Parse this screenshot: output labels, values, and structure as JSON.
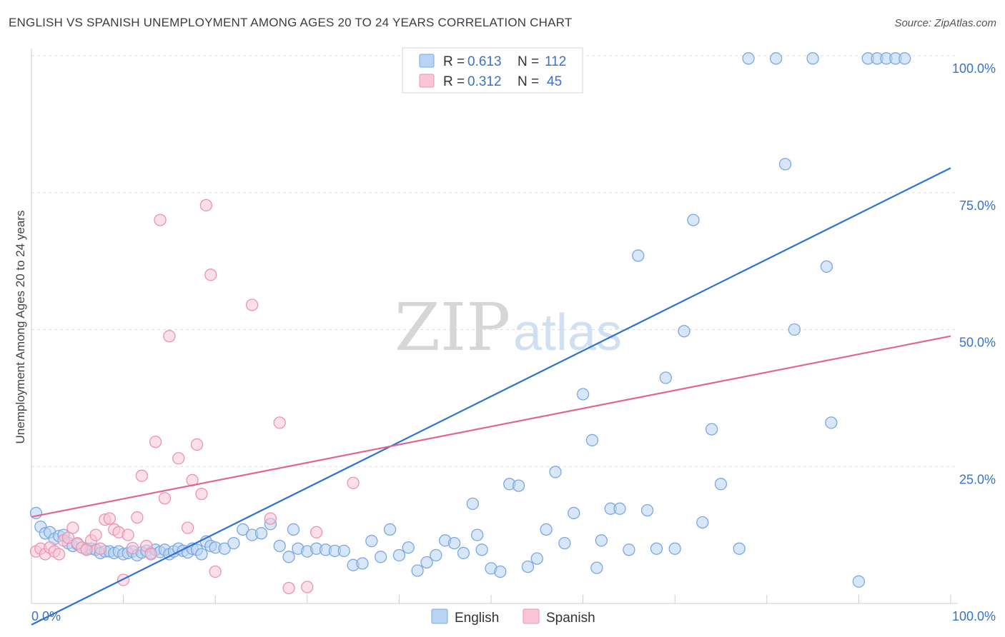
{
  "title": "ENGLISH VS SPANISH UNEMPLOYMENT AMONG AGES 20 TO 24 YEARS CORRELATION CHART",
  "source": "Source: ZipAtlas.com",
  "watermark": {
    "zip": "ZIP",
    "atlas": "atlas"
  },
  "legend_box": {
    "rows": [
      {
        "r_label": "R =",
        "r_value": "0.613",
        "n_label": "N =",
        "n_value": "112"
      },
      {
        "r_label": "R =",
        "r_value": "0.312",
        "n_label": "N =",
        "n_value": "45"
      }
    ]
  },
  "colors": {
    "english_fill": "#b8d3f3",
    "english_stroke": "#7aa8e0",
    "english_line": "#2d72d2",
    "spanish_fill": "#f8c6d6",
    "spanish_stroke": "#ec93b1",
    "spanish_line": "#e0668f",
    "tick_text": "#3a72c8",
    "grid": "#dddddd"
  },
  "chart_data": {
    "type": "scatter",
    "title": "ENGLISH VS SPANISH UNEMPLOYMENT AMONG AGES 20 TO 24 YEARS CORRELATION CHART",
    "xlabel": "",
    "ylabel": "Unemployment Among Ages 20 to 24 years",
    "xlim": [
      0,
      100
    ],
    "ylim": [
      0,
      100
    ],
    "x_tick_labels": [
      "0.0%",
      "100.0%"
    ],
    "y_tick_labels": [
      "25.0%",
      "50.0%",
      "75.0%",
      "100.0%"
    ],
    "y_ticks": [
      25,
      50,
      75,
      100
    ],
    "grid": true,
    "legend_position": "bottom-center",
    "series": [
      {
        "name": "English",
        "R": 0.613,
        "N": 112,
        "trend": {
          "x": [
            0,
            100
          ],
          "y": [
            -3.9,
            79.5
          ]
        },
        "points": [
          [
            0.5,
            16.5
          ],
          [
            1,
            14
          ],
          [
            1.5,
            12.8
          ],
          [
            2,
            13
          ],
          [
            2.5,
            11.8
          ],
          [
            3,
            12.3
          ],
          [
            3.5,
            12.5
          ],
          [
            4,
            11
          ],
          [
            4.5,
            10.5
          ],
          [
            5,
            10.8
          ],
          [
            5.5,
            10.2
          ],
          [
            6,
            10
          ],
          [
            6.5,
            10
          ],
          [
            7,
            9.8
          ],
          [
            7.5,
            9.2
          ],
          [
            8,
            9.5
          ],
          [
            8.5,
            9.5
          ],
          [
            9,
            9.2
          ],
          [
            9.5,
            9.5
          ],
          [
            10,
            9
          ],
          [
            10.5,
            9.2
          ],
          [
            11,
            9.5
          ],
          [
            11.5,
            8.8
          ],
          [
            12,
            9.3
          ],
          [
            12.5,
            9.6
          ],
          [
            13,
            9.2
          ],
          [
            13.5,
            9.8
          ],
          [
            14,
            9.4
          ],
          [
            14.5,
            9.8
          ],
          [
            15,
            9
          ],
          [
            15.5,
            9.5
          ],
          [
            16,
            10
          ],
          [
            16.5,
            9.6
          ],
          [
            17,
            9.3
          ],
          [
            17.5,
            10
          ],
          [
            18,
            9.8
          ],
          [
            18.5,
            9
          ],
          [
            19,
            11.3
          ],
          [
            19.5,
            10.5
          ],
          [
            20,
            10.2
          ],
          [
            21,
            10
          ],
          [
            22,
            11
          ],
          [
            23,
            13.5
          ],
          [
            24,
            12.5
          ],
          [
            25,
            12.8
          ],
          [
            26,
            14.5
          ],
          [
            27,
            10.5
          ],
          [
            28,
            8.5
          ],
          [
            28.5,
            13.5
          ],
          [
            29,
            10
          ],
          [
            30,
            9.5
          ],
          [
            31,
            10
          ],
          [
            32,
            9.8
          ],
          [
            33,
            9.6
          ],
          [
            34,
            9.6
          ],
          [
            35,
            7
          ],
          [
            36,
            7.3
          ],
          [
            37,
            11.4
          ],
          [
            38,
            8.5
          ],
          [
            39,
            13.5
          ],
          [
            40,
            8.8
          ],
          [
            41,
            10.2
          ],
          [
            42,
            6
          ],
          [
            43,
            7.5
          ],
          [
            44,
            8.8
          ],
          [
            45,
            11.5
          ],
          [
            46,
            11
          ],
          [
            47,
            9.2
          ],
          [
            48,
            18.2
          ],
          [
            48.5,
            12.5
          ],
          [
            49,
            9.8
          ],
          [
            50,
            6.4
          ],
          [
            51,
            5.8
          ],
          [
            52,
            21.8
          ],
          [
            53,
            21.5
          ],
          [
            54,
            6.7
          ],
          [
            55,
            8.2
          ],
          [
            56,
            13.5
          ],
          [
            57,
            24
          ],
          [
            58,
            11
          ],
          [
            59,
            16.5
          ],
          [
            60,
            38.2
          ],
          [
            61,
            29.8
          ],
          [
            61.5,
            6.5
          ],
          [
            62,
            11.5
          ],
          [
            63,
            17.3
          ],
          [
            64,
            17.3
          ],
          [
            65,
            9.8
          ],
          [
            66,
            63.5
          ],
          [
            67,
            17
          ],
          [
            68,
            10
          ],
          [
            69,
            41.2
          ],
          [
            70,
            10
          ],
          [
            71,
            49.7
          ],
          [
            72,
            70
          ],
          [
            73,
            14.8
          ],
          [
            74,
            31.8
          ],
          [
            75,
            21.8
          ],
          [
            77,
            10
          ],
          [
            78,
            99.5
          ],
          [
            81,
            99.5
          ],
          [
            82,
            80.2
          ],
          [
            83,
            50
          ],
          [
            85,
            99.5
          ],
          [
            87,
            33
          ],
          [
            90,
            4
          ],
          [
            91,
            99.5
          ],
          [
            92,
            99.5
          ],
          [
            93,
            99.5
          ],
          [
            94,
            99.5
          ],
          [
            95,
            99.5
          ],
          [
            86.5,
            61.5
          ]
        ]
      },
      {
        "name": "Spanish",
        "R": 0.312,
        "N": 45,
        "trend": {
          "x": [
            0,
            100
          ],
          "y": [
            15.8,
            48.8
          ]
        },
        "points": [
          [
            0.5,
            9.5
          ],
          [
            1,
            10
          ],
          [
            1.5,
            9
          ],
          [
            2,
            10.2
          ],
          [
            2.5,
            9.5
          ],
          [
            3,
            9
          ],
          [
            3.5,
            11.5
          ],
          [
            4,
            12
          ],
          [
            4.5,
            13.8
          ],
          [
            5,
            11
          ],
          [
            5.5,
            10.2
          ],
          [
            6,
            9.8
          ],
          [
            6.5,
            11.5
          ],
          [
            7,
            12.5
          ],
          [
            7.5,
            10
          ],
          [
            8,
            15.3
          ],
          [
            8.5,
            15.5
          ],
          [
            9,
            13.5
          ],
          [
            9.5,
            13
          ],
          [
            10,
            4.3
          ],
          [
            10.5,
            12.5
          ],
          [
            11,
            10.1
          ],
          [
            11.5,
            15.7
          ],
          [
            12,
            23.3
          ],
          [
            12.5,
            10.5
          ],
          [
            13,
            9
          ],
          [
            13.5,
            29.5
          ],
          [
            14,
            70
          ],
          [
            14.5,
            19.2
          ],
          [
            15,
            48.8
          ],
          [
            16,
            26.5
          ],
          [
            17,
            13.8
          ],
          [
            17.5,
            22.5
          ],
          [
            18,
            29
          ],
          [
            18.5,
            20
          ],
          [
            19,
            72.7
          ],
          [
            19.5,
            60
          ],
          [
            20,
            5.8
          ],
          [
            24,
            54.5
          ],
          [
            26,
            15.5
          ],
          [
            27,
            33
          ],
          [
            28,
            2.8
          ],
          [
            30,
            3
          ],
          [
            31,
            13
          ],
          [
            35,
            22
          ]
        ]
      }
    ]
  },
  "legend": [
    {
      "label": "English"
    },
    {
      "label": "Spanish"
    }
  ]
}
